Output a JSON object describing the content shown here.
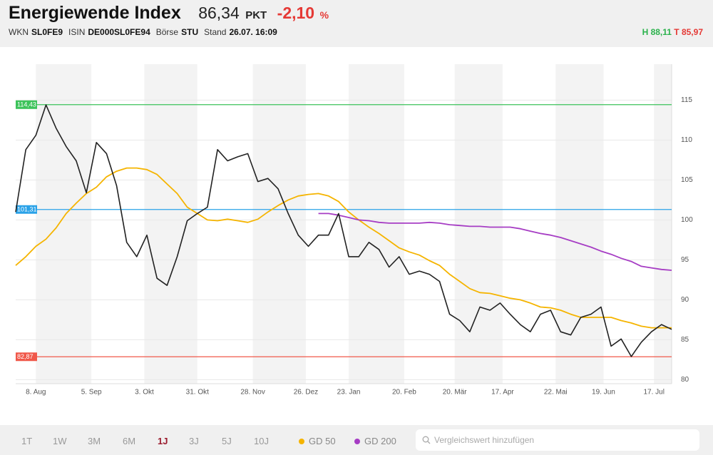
{
  "header": {
    "title": "Energiewende Index",
    "price": "86,34",
    "unit": "PKT",
    "change": "-2,10",
    "change_unit": "%",
    "meta": [
      [
        "WKN",
        "SL0FE9"
      ],
      [
        "ISIN",
        "DE000SL0FE94"
      ],
      [
        "Börse",
        "STU"
      ],
      [
        "Stand",
        "26.07. 16:09"
      ]
    ],
    "high": "H 88,11",
    "low": "T 85,97"
  },
  "chart_data": {
    "type": "line",
    "x": [
      0,
      4,
      8,
      12,
      16,
      20,
      24,
      28,
      32,
      36,
      40,
      44,
      48,
      52,
      56,
      60,
      64,
      68,
      72,
      76,
      80,
      84,
      88,
      92,
      96,
      100,
      104,
      108,
      112,
      116,
      120,
      124,
      128,
      132,
      136,
      140,
      144,
      148,
      152,
      156,
      160,
      164,
      168,
      172,
      176,
      180,
      184,
      188,
      192,
      196,
      200,
      204,
      208,
      212,
      216,
      220,
      224,
      228,
      232,
      236,
      240,
      244,
      248,
      252,
      256,
      260
    ],
    "xlim": [
      0,
      260
    ],
    "xticks": [
      {
        "value": 8,
        "label": "8. Aug"
      },
      {
        "value": 30,
        "label": "5. Sep"
      },
      {
        "value": 51,
        "label": "3. Okt"
      },
      {
        "value": 72,
        "label": "31. Okt"
      },
      {
        "value": 94,
        "label": "28. Nov"
      },
      {
        "value": 115,
        "label": "26. Dez"
      },
      {
        "value": 132,
        "label": "23. Jan"
      },
      {
        "value": 154,
        "label": "20. Feb"
      },
      {
        "value": 174,
        "label": "20. Mär"
      },
      {
        "value": 193,
        "label": "17. Apr"
      },
      {
        "value": 214,
        "label": "22. Mai"
      },
      {
        "value": 233,
        "label": "19. Jun"
      },
      {
        "value": 253,
        "label": "17. Jul"
      }
    ],
    "ylim": [
      79.5,
      119.5
    ],
    "yticks": [
      80,
      85,
      90,
      95,
      100,
      105,
      110,
      115
    ],
    "series": [
      {
        "color": "#222222",
        "values": [
          101,
          108.8,
          110.6,
          114.4,
          111.5,
          109.2,
          107.4,
          103.4,
          109.7,
          108.3,
          104.3,
          97.2,
          95.4,
          98.1,
          92.7,
          91.8,
          95.4,
          99.9,
          100.8,
          101.6,
          108.8,
          107.4,
          107.9,
          108.3,
          104.8,
          105.2,
          103.9,
          100.8,
          98.1,
          96.7,
          98.1,
          98.1,
          100.8,
          95.4,
          95.4,
          97.2,
          96.3,
          94.1,
          95.4,
          93.2,
          93.6,
          93.2,
          92.3,
          88.2,
          87.4,
          86.0,
          89.1,
          88.7,
          89.6,
          88.2,
          86.9,
          86.0,
          88.2,
          88.7,
          86.0,
          85.6,
          87.8,
          88.2,
          89.1,
          84.2,
          85.1,
          82.9,
          84.7,
          86.0,
          86.9,
          86.3
        ]
      },
      {
        "name": "GD 50",
        "color": "#f5b400",
        "values": [
          94.3,
          95.4,
          96.7,
          97.6,
          99.0,
          100.8,
          102.1,
          103.3,
          104.1,
          105.4,
          106.1,
          106.5,
          106.5,
          106.3,
          105.7,
          104.5,
          103.3,
          101.6,
          100.8,
          100.0,
          99.9,
          100.1,
          99.9,
          99.7,
          100.1,
          101.0,
          101.8,
          102.5,
          103.0,
          103.2,
          103.3,
          103.0,
          102.3,
          101.0,
          100.0,
          99.1,
          98.3,
          97.4,
          96.5,
          96.0,
          95.6,
          94.9,
          94.3,
          93.2,
          92.3,
          91.4,
          90.9,
          90.8,
          90.5,
          90.2,
          90.0,
          89.6,
          89.1,
          89.0,
          88.7,
          88.2,
          87.8,
          87.8,
          87.8,
          87.8,
          87.4,
          87.1,
          86.7,
          86.5,
          86.5,
          86.5
        ]
      },
      {
        "name": "GD 200",
        "color": "#a63dc4",
        "values": [
          null,
          null,
          null,
          null,
          null,
          null,
          null,
          null,
          null,
          null,
          null,
          null,
          null,
          null,
          null,
          null,
          null,
          null,
          null,
          null,
          null,
          null,
          null,
          null,
          null,
          null,
          null,
          null,
          null,
          null,
          100.8,
          100.8,
          100.6,
          100.3,
          100.0,
          99.9,
          99.7,
          99.6,
          99.6,
          99.6,
          99.6,
          99.7,
          99.6,
          99.4,
          99.3,
          99.2,
          99.2,
          99.1,
          99.1,
          99.1,
          98.9,
          98.6,
          98.3,
          98.1,
          97.8,
          97.4,
          97.0,
          96.6,
          96.1,
          95.7,
          95.2,
          94.8,
          94.2,
          94.0,
          93.8,
          93.7
        ]
      }
    ],
    "hlines": [
      {
        "value": 114.43,
        "label": "114,43",
        "color": "#3cc35a"
      },
      {
        "value": 101.31,
        "label": "101,31",
        "color": "#2aa2e8"
      },
      {
        "value": 82.87,
        "label": "82,87",
        "color": "#f0584a"
      }
    ],
    "grid": true
  },
  "footer": {
    "ranges": [
      "1T",
      "1W",
      "3M",
      "6M",
      "1J",
      "3J",
      "5J",
      "10J"
    ],
    "active_range": 4,
    "search_placeholder": "Vergleichswert hinzufügen"
  }
}
